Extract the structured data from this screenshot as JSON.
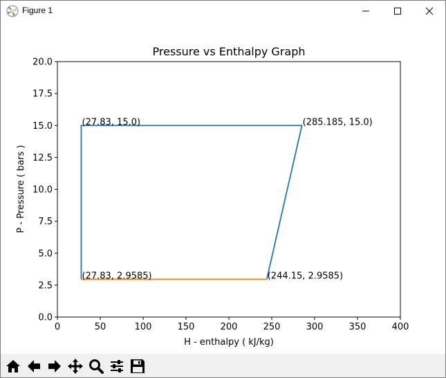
{
  "window": {
    "title": "Figure 1",
    "minimize_icon": "minimize-icon",
    "maximize_icon": "maximize-icon",
    "close_icon": "close-icon"
  },
  "toolbar": {
    "buttons": [
      {
        "name": "home-button",
        "icon": "home-icon"
      },
      {
        "name": "back-button",
        "icon": "arrow-left-icon"
      },
      {
        "name": "forward-button",
        "icon": "arrow-right-icon"
      },
      {
        "name": "pan-button",
        "icon": "move-icon"
      },
      {
        "name": "zoom-button",
        "icon": "magnifier-icon"
      },
      {
        "name": "configure-subplots-button",
        "icon": "sliders-icon"
      },
      {
        "name": "save-button",
        "icon": "floppy-disk-icon"
      }
    ]
  },
  "chart_data": {
    "type": "line",
    "title": "Pressure vs Enthalpy Graph",
    "xlabel": "H - enthalpy ( kJ/kg)",
    "ylabel": "P - Pressure ( bars )",
    "xlim": [
      0,
      400
    ],
    "ylim": [
      0,
      20
    ],
    "xticks": [
      0,
      50,
      100,
      150,
      200,
      250,
      300,
      350,
      400
    ],
    "yticks": [
      0.0,
      2.5,
      5.0,
      7.5,
      10.0,
      12.5,
      15.0,
      17.5,
      20.0
    ],
    "xtick_labels": [
      "0",
      "50",
      "100",
      "150",
      "200",
      "250",
      "300",
      "350",
      "400"
    ],
    "ytick_labels": [
      "0.0",
      "2.5",
      "5.0",
      "7.5",
      "10.0",
      "12.5",
      "15.0",
      "17.5",
      "20.0"
    ],
    "grid": false,
    "series": [
      {
        "color": "#1f77b4",
        "x": [
          27.83,
          27.83,
          285.185,
          244.15
        ],
        "y": [
          2.9585,
          15.0,
          15.0,
          2.9585
        ]
      },
      {
        "color": "#ff7f0e",
        "x": [
          244.15,
          27.83
        ],
        "y": [
          2.9585,
          2.9585
        ]
      }
    ],
    "annotations": [
      {
        "text": "(27.83, 15.0)",
        "x": 27.83,
        "y": 15.0
      },
      {
        "text": "(285.185, 15.0)",
        "x": 285.185,
        "y": 15.0
      },
      {
        "text": "(27.83, 2.9585)",
        "x": 27.83,
        "y": 2.9585
      },
      {
        "text": "(244.15, 2.9585)",
        "x": 244.15,
        "y": 2.9585
      }
    ]
  }
}
